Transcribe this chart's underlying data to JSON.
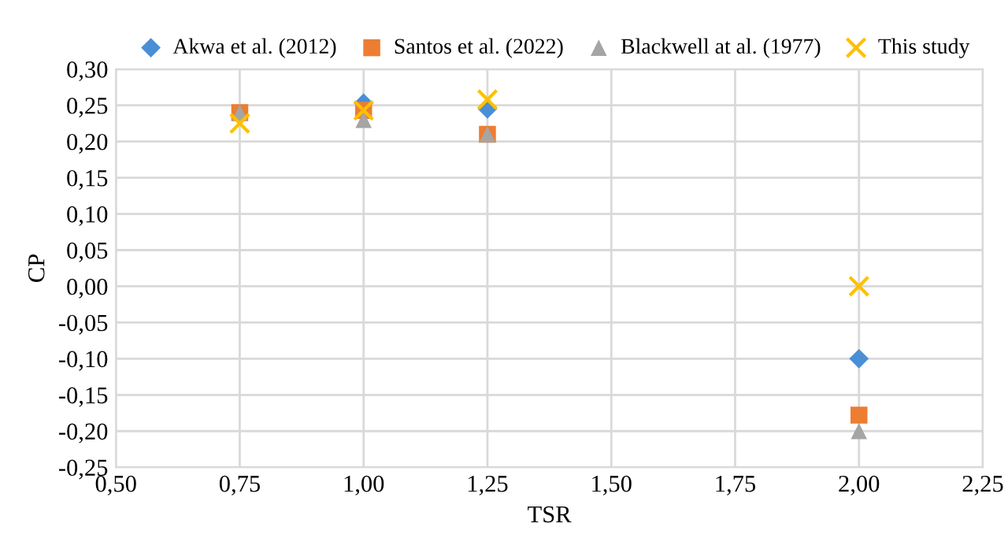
{
  "chart_data": {
    "type": "scatter",
    "xlabel": "TSR",
    "ylabel": "CP",
    "x": [
      0.75,
      1.0,
      1.25,
      2.0
    ],
    "series": [
      {
        "name": "Akwa et al. (2012)",
        "color": "#4a8fd6",
        "marker": "diamond",
        "values": [
          null,
          0.253,
          0.245,
          -0.1
        ]
      },
      {
        "name": "Santos et al. (2022)",
        "color": "#ed7d31",
        "marker": "square",
        "values": [
          0.24,
          0.243,
          0.21,
          -0.178
        ]
      },
      {
        "name": "Blackwell at al. (1977)",
        "color": "#a5a5a5",
        "marker": "triangle",
        "values": [
          0.24,
          0.23,
          0.21,
          -0.2
        ]
      },
      {
        "name": "This study",
        "color": "#ffc000",
        "marker": "cross",
        "values": [
          0.225,
          0.243,
          0.258,
          0.0
        ]
      }
    ],
    "xlim": [
      0.5,
      2.25
    ],
    "xticks": [
      {
        "value": 0.5,
        "label": "0,50"
      },
      {
        "value": 0.75,
        "label": "0,75"
      },
      {
        "value": 1.0,
        "label": "1,00"
      },
      {
        "value": 1.25,
        "label": "1,25"
      },
      {
        "value": 1.5,
        "label": "1,50"
      },
      {
        "value": 1.75,
        "label": "1,75"
      },
      {
        "value": 2.0,
        "label": "2,00"
      },
      {
        "value": 2.25,
        "label": "2,25"
      }
    ],
    "ylim": [
      -0.25,
      0.3
    ],
    "yticks": [
      {
        "value": -0.25,
        "label": "-0,25"
      },
      {
        "value": -0.2,
        "label": "-0,20"
      },
      {
        "value": -0.15,
        "label": "-0,15"
      },
      {
        "value": -0.1,
        "label": "-0,10"
      },
      {
        "value": -0.05,
        "label": "-0,05"
      },
      {
        "value": 0.0,
        "label": "0,00"
      },
      {
        "value": 0.05,
        "label": "0,05"
      },
      {
        "value": 0.1,
        "label": "0,10"
      },
      {
        "value": 0.15,
        "label": "0,15"
      },
      {
        "value": 0.2,
        "label": "0,20"
      },
      {
        "value": 0.25,
        "label": "0,25"
      },
      {
        "value": 0.3,
        "label": "0,30"
      }
    ],
    "grid": true,
    "legend": "top"
  }
}
